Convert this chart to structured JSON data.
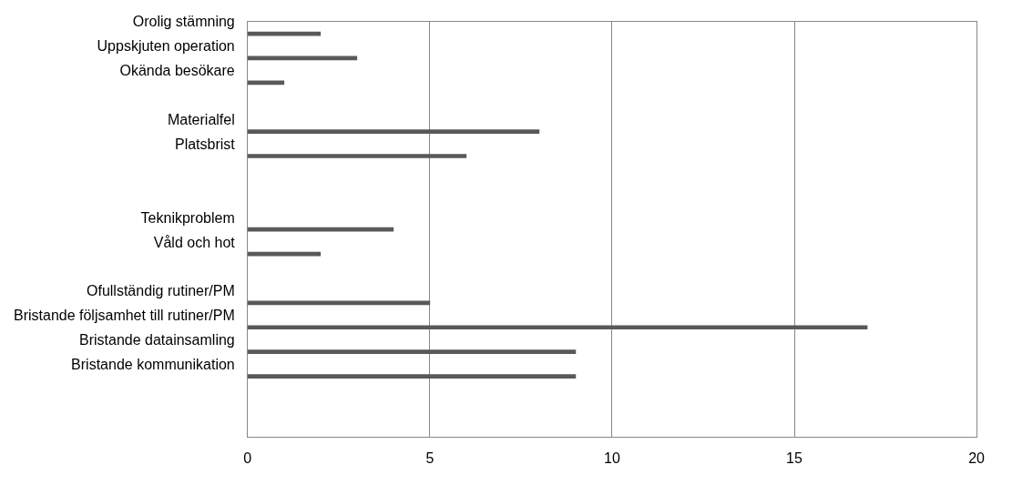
{
  "chart_data": {
    "type": "bar",
    "orientation": "horizontal",
    "categories": [
      "Orolig stämning",
      "Uppskjuten operation",
      "Okända besökare",
      null,
      "Materialfel",
      "Platsbrist",
      null,
      null,
      "Teknikproblem",
      "Våld och hot",
      null,
      "Ofullständig rutiner/PM",
      "Bristande följsamhet till rutiner/PM",
      "Bristande datainsamling",
      "Bristande kommunikation",
      null,
      null
    ],
    "values": [
      2,
      3,
      1,
      null,
      8,
      6,
      null,
      null,
      4,
      2,
      null,
      5,
      17,
      9,
      9,
      null,
      null
    ],
    "color": "#595959",
    "xlim": [
      0,
      20
    ],
    "xticks": [
      0,
      5,
      10,
      15,
      20
    ],
    "grid": "x",
    "legend": false
  }
}
